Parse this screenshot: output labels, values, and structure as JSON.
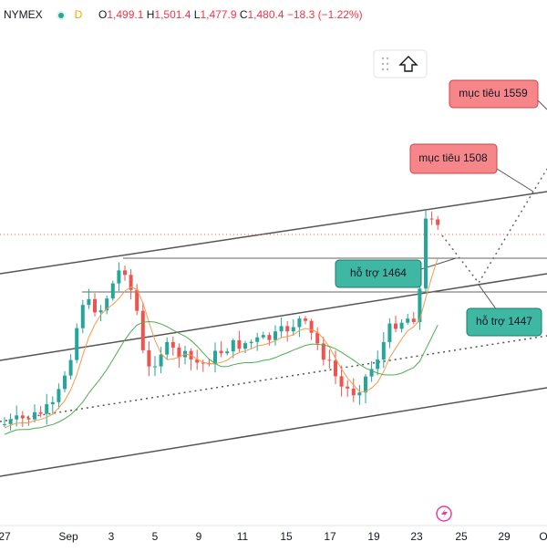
{
  "header": {
    "symbol": "NYMEX",
    "interval": "D",
    "open_label": "O",
    "open": "1,499.1",
    "high_label": "H",
    "high": "1,501.4",
    "low_label": "L",
    "low": "1,477.9",
    "close_label": "C",
    "close": "1,480.4",
    "change": "−18.3 (−1.22%)"
  },
  "annotations": [
    {
      "text": "mục tiêu 1559"
    },
    {
      "text": "mục tiêu 1508"
    },
    {
      "text": "hỗ trợ 1464"
    },
    {
      "text": "hỗ trợ 1447"
    }
  ],
  "x_axis": [
    "27",
    "Sep",
    "3",
    "5",
    "9",
    "11",
    "15",
    "17",
    "19",
    "23",
    "25",
    "29",
    "O"
  ]
}
